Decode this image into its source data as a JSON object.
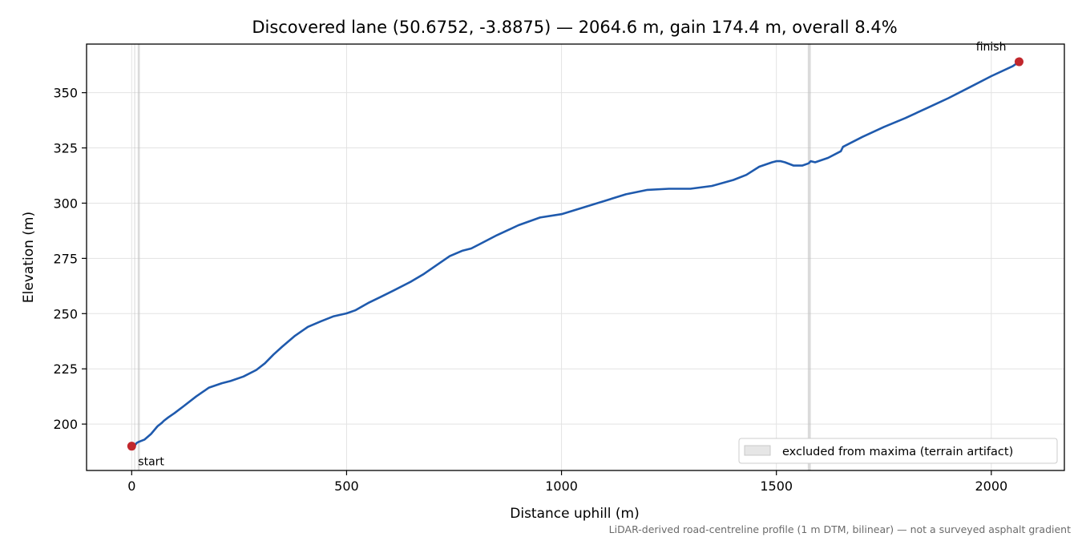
{
  "chart_data": {
    "type": "line",
    "title": "Discovered lane (50.6752, -3.8875) — 2064.6 m, gain 174.4 m, overall 8.4%",
    "xlabel": "Distance uphill (m)",
    "ylabel": "Elevation (m)",
    "xlim": [
      -105,
      2170
    ],
    "ylim": [
      179,
      372
    ],
    "xticks": [
      0,
      500,
      1000,
      1500,
      2000
    ],
    "yticks": [
      200,
      225,
      250,
      275,
      300,
      325,
      350
    ],
    "grid": true,
    "series": [
      {
        "color": "#1f5aad",
        "x": [
          0,
          8,
          12,
          17,
          30,
          45,
          60,
          70,
          75,
          85,
          100,
          120,
          150,
          180,
          210,
          230,
          260,
          290,
          310,
          330,
          350,
          380,
          410,
          440,
          470,
          500,
          520,
          550,
          580,
          610,
          650,
          680,
          710,
          740,
          770,
          790,
          810,
          850,
          900,
          950,
          1000,
          1050,
          1100,
          1150,
          1200,
          1250,
          1300,
          1350,
          1400,
          1430,
          1460,
          1490,
          1500,
          1510,
          1520,
          1540,
          1560,
          1575,
          1580,
          1590,
          1620,
          1650,
          1655,
          1700,
          1750,
          1800,
          1850,
          1900,
          1950,
          2000,
          2050,
          2064.6
        ],
        "y": [
          190,
          190.5,
          191.5,
          192,
          193,
          195.5,
          199,
          200.5,
          201.5,
          203,
          205,
          208,
          212.5,
          216.5,
          218.5,
          219.5,
          221.5,
          224.5,
          227.5,
          231.5,
          235,
          240,
          244,
          246.5,
          248.8,
          250.1,
          251.5,
          254.8,
          257.6,
          260.5,
          264.5,
          268,
          272,
          276,
          278.5,
          279.5,
          281.5,
          285.5,
          290,
          293.5,
          295,
          298,
          301,
          304,
          306,
          306.5,
          306.5,
          307.8,
          310.5,
          312.8,
          316.5,
          318.5,
          319,
          319,
          318.5,
          317,
          317,
          318,
          319,
          318.5,
          320.5,
          323.5,
          325.5,
          330,
          334.5,
          338.5,
          343,
          347.5,
          352.5,
          357.5,
          362,
          364
        ]
      }
    ],
    "markers": [
      {
        "label": "start",
        "x": 0,
        "y": 190,
        "color": "#c1272d"
      },
      {
        "label": "finish",
        "x": 2064.6,
        "y": 364,
        "color": "#c1272d"
      }
    ],
    "excluded_spans": [
      {
        "x0": 6,
        "x1": 8
      },
      {
        "x0": 14,
        "x1": 19
      },
      {
        "x0": 1573,
        "x1": 1580
      }
    ],
    "legend": {
      "position": "lower-right",
      "label": "excluded from maxima (terrain artifact)",
      "swatch_color": "#e6e6e6"
    },
    "footnote": "LiDAR-derived road-centreline profile (1 m DTM, bilinear) — not a surveyed asphalt gradient"
  }
}
